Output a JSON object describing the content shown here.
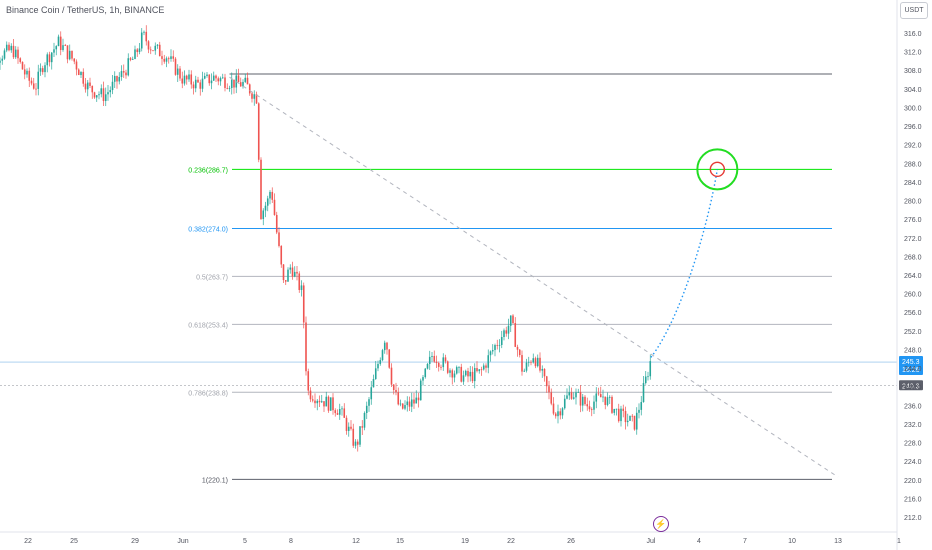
{
  "header": {
    "title": "Binance Coin / TetherUS, 1h, BINANCE",
    "currency": "USDT"
  },
  "colors": {
    "up": "#26a69a",
    "down": "#ef5350",
    "green_level": "#00e600",
    "blue_level": "#2196f3",
    "gray_level": "#b2b5be",
    "target_circle": "#22dd22",
    "target_inner": "#e53935",
    "projection": "#2196f3",
    "last_price_bg": "#2196f3",
    "tag_bg": "#5d606b"
  },
  "chart_data": {
    "type": "candlestick",
    "symbol": "Binance Coin / TetherUS",
    "interval": "1h",
    "exchange": "BINANCE",
    "ylim": [
      209,
      319
    ],
    "y_ticks": [
      "212.0",
      "216.0",
      "220.0",
      "224.0",
      "228.0",
      "232.0",
      "236.0",
      "240.0",
      "244.0",
      "248.0",
      "252.0",
      "256.0",
      "260.0",
      "264.0",
      "268.0",
      "272.0",
      "276.0",
      "280.0",
      "284.0",
      "288.0",
      "292.0",
      "296.0",
      "300.0",
      "304.0",
      "308.0",
      "312.0",
      "316.0"
    ],
    "x_ticks": [
      "22",
      "25",
      "29",
      "Jun",
      "5",
      "8",
      "12",
      "15",
      "19",
      "22",
      "26",
      "Jul",
      "4",
      "7",
      "10",
      "13",
      "1"
    ],
    "fib_levels": [
      {
        "label": "0.236(286.7)",
        "value": 286.7,
        "style": "green"
      },
      {
        "label": "0.382(274.0)",
        "value": 274.0,
        "style": "blue"
      },
      {
        "label": "0.5(263.7)",
        "value": 263.7,
        "style": "gray"
      },
      {
        "label": "0.618(253.4)",
        "value": 253.4,
        "style": "gray"
      },
      {
        "label": "0.786(238.8)",
        "value": 238.8,
        "style": "gray"
      },
      {
        "label": "1(220.1)",
        "value": 220.1,
        "style": "dark"
      }
    ],
    "top_level": 307.2,
    "last_price": {
      "value": "245.3",
      "countdown": "16:26"
    },
    "price_tag": "240.3",
    "trend_line": {
      "from": {
        "date": "Jun 4",
        "value": 306.5
      },
      "to": {
        "date": "Jul 13",
        "value": 220.6
      }
    },
    "projection": {
      "from": {
        "date": "Jul 1",
        "value": 246.3
      },
      "to": {
        "date": "Jul 5",
        "value": 286.7
      }
    },
    "price_path": [
      {
        "date": "May 19",
        "value": 308.5
      },
      {
        "date": "May 20",
        "value": 311
      },
      {
        "date": "May 21",
        "value": 312.5
      },
      {
        "date": "May 22",
        "value": 306
      },
      {
        "date": "May 22.5",
        "value": 304.5
      },
      {
        "date": "May 23",
        "value": 309.5
      },
      {
        "date": "May 24",
        "value": 314
      },
      {
        "date": "May 25",
        "value": 310
      },
      {
        "date": "May 26",
        "value": 304
      },
      {
        "date": "May 27",
        "value": 302.5
      },
      {
        "date": "May 28",
        "value": 306.5
      },
      {
        "date": "May 29",
        "value": 311
      },
      {
        "date": "May 29.5",
        "value": 315.5
      },
      {
        "date": "May 30",
        "value": 313
      },
      {
        "date": "May 31",
        "value": 311
      },
      {
        "date": "Jun 1",
        "value": 306
      },
      {
        "date": "Jun 2",
        "value": 305
      },
      {
        "date": "Jun 3",
        "value": 306.5
      },
      {
        "date": "Jun 4",
        "value": 305.5
      },
      {
        "date": "Jun 5",
        "value": 305
      },
      {
        "date": "Jun 5.8",
        "value": 302
      },
      {
        "date": "Jun 6",
        "value": 277
      },
      {
        "date": "Jun 6.5",
        "value": 280
      },
      {
        "date": "Jun 6.7",
        "value": 283
      },
      {
        "date": "Jun 7",
        "value": 275
      },
      {
        "date": "Jun 7.5",
        "value": 262
      },
      {
        "date": "Jun 8",
        "value": 266
      },
      {
        "date": "Jun 8.7",
        "value": 260
      },
      {
        "date": "Jun 9",
        "value": 239
      },
      {
        "date": "Jun 10",
        "value": 237
      },
      {
        "date": "Jun 11",
        "value": 235
      },
      {
        "date": "Jun 12",
        "value": 227
      },
      {
        "date": "Jun 12.8",
        "value": 236
      },
      {
        "date": "Jun 13.5",
        "value": 245
      },
      {
        "date": "Jun 14",
        "value": 251
      },
      {
        "date": "Jun 14.5",
        "value": 240
      },
      {
        "date": "Jun 15",
        "value": 235
      },
      {
        "date": "Jun 16",
        "value": 237
      },
      {
        "date": "Jun 17",
        "value": 247
      },
      {
        "date": "Jun 18",
        "value": 244
      },
      {
        "date": "Jun 19",
        "value": 242
      },
      {
        "date": "Jun 20",
        "value": 243
      },
      {
        "date": "Jun 21",
        "value": 249
      },
      {
        "date": "Jun 22",
        "value": 254
      },
      {
        "date": "Jun 22.8",
        "value": 243
      },
      {
        "date": "Jun 23.5",
        "value": 247
      },
      {
        "date": "Jun 24",
        "value": 243
      },
      {
        "date": "Jun 25",
        "value": 234
      },
      {
        "date": "Jun 26",
        "value": 239
      },
      {
        "date": "Jun 27",
        "value": 236
      },
      {
        "date": "Jun 28",
        "value": 238
      },
      {
        "date": "Jun 29",
        "value": 234
      },
      {
        "date": "Jun 30",
        "value": 232
      },
      {
        "date": "Jul 1",
        "value": 246
      }
    ]
  }
}
